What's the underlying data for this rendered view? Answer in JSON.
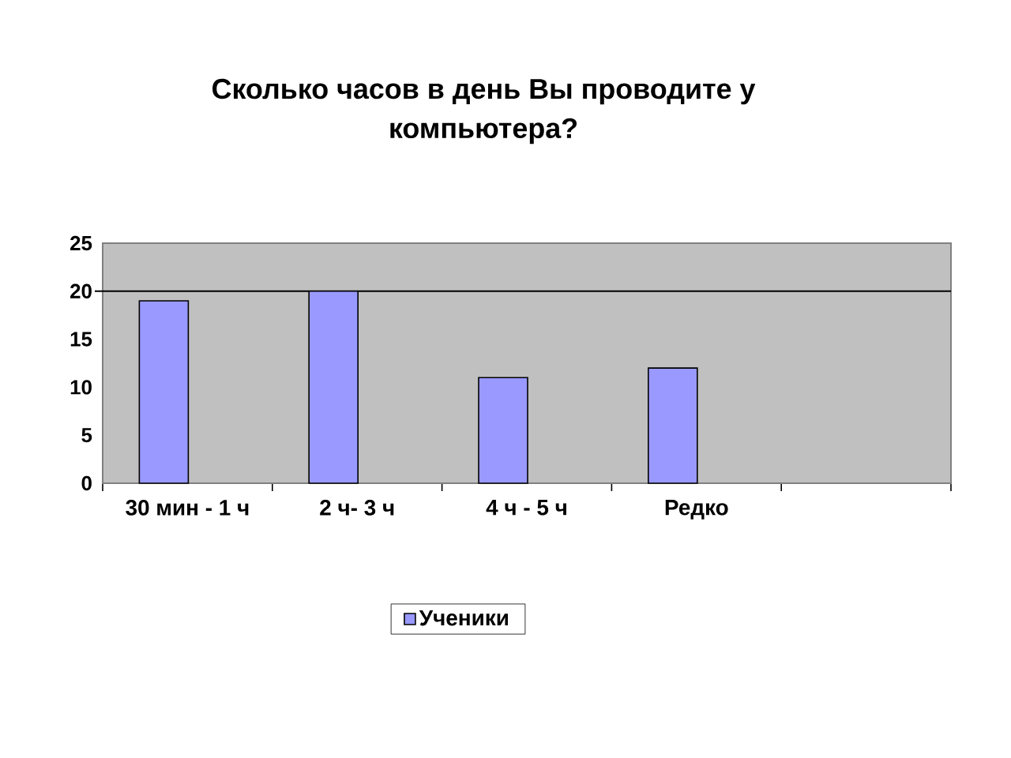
{
  "chart_data": {
    "type": "bar",
    "title": "Сколько часов в день Вы проводите у компьютера?",
    "categories": [
      "30 мин - 1 ч",
      "2 ч- 3 ч",
      "4 ч - 5 ч",
      "Редко",
      null
    ],
    "series": [
      {
        "name": "Ученики",
        "color": "#9999ff",
        "values": [
          19,
          20,
          11,
          12,
          null
        ]
      }
    ],
    "ylim": [
      0,
      25
    ],
    "yticks": [
      0,
      5,
      10,
      15,
      20,
      25
    ],
    "legend": "bottom",
    "ref_lines": [
      {
        "axis": "y",
        "value": 20
      }
    ]
  }
}
